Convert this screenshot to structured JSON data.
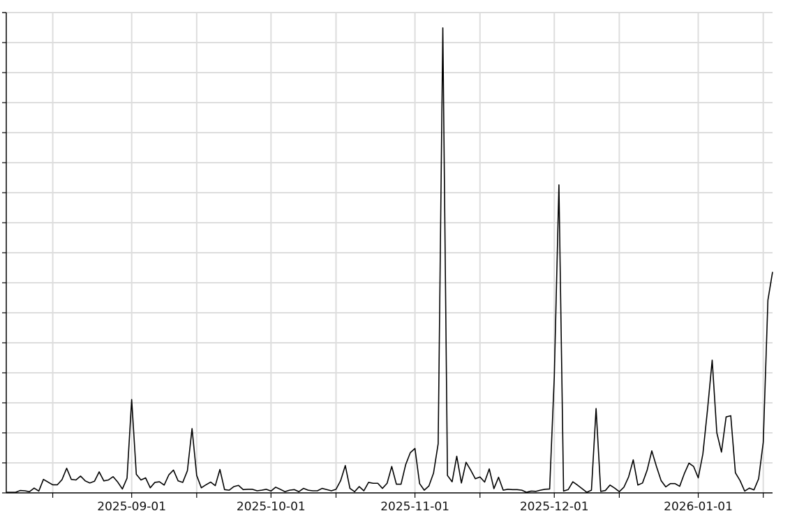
{
  "chart_data": {
    "type": "line",
    "title": "",
    "xlabel": "",
    "ylabel": "",
    "grid": true,
    "legend": "none",
    "line_color": "#000000",
    "grid_color": "#dddddd",
    "xlim": [
      "2025-08-05",
      "2026-01-17"
    ],
    "ylim": [
      0,
      16
    ],
    "y_tick_count": 17,
    "y_tick_labels_shown": false,
    "x_major_ticks": [
      "2025-09-01",
      "2025-10-01",
      "2025-11-01",
      "2025-12-01",
      "2026-01-01"
    ],
    "x_minor_ticks": [
      "2025-08-15",
      "2025-09-15",
      "2025-10-15",
      "2025-11-15",
      "2025-12-15",
      "2026-01-15"
    ],
    "x_tick_labels": [
      "2025-09-01",
      "2025-10-01",
      "2025-11-01",
      "2025-12-01",
      "2026-01-01"
    ],
    "x": [
      "2025-08-05",
      "2025-08-06",
      "2025-08-07",
      "2025-08-08",
      "2025-08-09",
      "2025-08-10",
      "2025-08-11",
      "2025-08-12",
      "2025-08-13",
      "2025-08-14",
      "2025-08-15",
      "2025-08-16",
      "2025-08-17",
      "2025-08-18",
      "2025-08-19",
      "2025-08-20",
      "2025-08-21",
      "2025-08-22",
      "2025-08-23",
      "2025-08-24",
      "2025-08-25",
      "2025-08-26",
      "2025-08-27",
      "2025-08-28",
      "2025-08-29",
      "2025-08-30",
      "2025-08-31",
      "2025-09-01",
      "2025-09-02",
      "2025-09-03",
      "2025-09-04",
      "2025-09-05",
      "2025-09-06",
      "2025-09-07",
      "2025-09-08",
      "2025-09-09",
      "2025-09-10",
      "2025-09-11",
      "2025-09-12",
      "2025-09-13",
      "2025-09-14",
      "2025-09-15",
      "2025-09-16",
      "2025-09-17",
      "2025-09-18",
      "2025-09-19",
      "2025-09-20",
      "2025-09-21",
      "2025-09-22",
      "2025-09-23",
      "2025-09-24",
      "2025-09-25",
      "2025-09-26",
      "2025-09-27",
      "2025-09-28",
      "2025-09-29",
      "2025-09-30",
      "2025-10-01",
      "2025-10-02",
      "2025-10-03",
      "2025-10-04",
      "2025-10-05",
      "2025-10-06",
      "2025-10-07",
      "2025-10-08",
      "2025-10-09",
      "2025-10-10",
      "2025-10-11",
      "2025-10-12",
      "2025-10-13",
      "2025-10-14",
      "2025-10-15",
      "2025-10-16",
      "2025-10-17",
      "2025-10-18",
      "2025-10-19",
      "2025-10-20",
      "2025-10-21",
      "2025-10-22",
      "2025-10-23",
      "2025-10-24",
      "2025-10-25",
      "2025-10-26",
      "2025-10-27",
      "2025-10-28",
      "2025-10-29",
      "2025-10-30",
      "2025-10-31",
      "2025-11-01",
      "2025-11-02",
      "2025-11-03",
      "2025-11-04",
      "2025-11-05",
      "2025-11-06",
      "2025-11-07",
      "2025-11-08",
      "2025-11-09",
      "2025-11-10",
      "2025-11-11",
      "2025-11-12",
      "2025-11-13",
      "2025-11-14",
      "2025-11-15",
      "2025-11-16",
      "2025-11-17",
      "2025-11-18",
      "2025-11-19",
      "2025-11-20",
      "2025-11-21",
      "2025-11-22",
      "2025-11-23",
      "2025-11-24",
      "2025-11-25",
      "2025-11-26",
      "2025-11-27",
      "2025-11-28",
      "2025-11-29",
      "2025-11-30",
      "2025-12-01",
      "2025-12-02",
      "2025-12-03",
      "2025-12-04",
      "2025-12-05",
      "2025-12-06",
      "2025-12-07",
      "2025-12-08",
      "2025-12-09",
      "2025-12-10",
      "2025-12-11",
      "2025-12-12",
      "2025-12-13",
      "2025-12-14",
      "2025-12-15",
      "2025-12-16",
      "2025-12-17",
      "2025-12-18",
      "2025-12-19",
      "2025-12-20",
      "2025-12-21",
      "2025-12-22",
      "2025-12-23",
      "2025-12-24",
      "2025-12-25",
      "2025-12-26",
      "2025-12-27",
      "2025-12-28",
      "2025-12-29",
      "2025-12-30",
      "2025-12-31",
      "2026-01-01",
      "2026-01-02",
      "2026-01-03",
      "2026-01-04",
      "2026-01-05",
      "2026-01-06",
      "2026-01-07",
      "2026-01-08",
      "2026-01-09",
      "2026-01-10",
      "2026-01-11",
      "2026-01-12",
      "2026-01-13",
      "2026-01-14",
      "2026-01-15",
      "2026-01-16",
      "2026-01-17"
    ],
    "values": [
      0.02,
      0.02,
      0.02,
      0.08,
      0.07,
      0.04,
      0.16,
      0.06,
      0.45,
      0.36,
      0.27,
      0.27,
      0.44,
      0.82,
      0.45,
      0.43,
      0.56,
      0.4,
      0.33,
      0.39,
      0.7,
      0.4,
      0.43,
      0.54,
      0.36,
      0.13,
      0.49,
      3.11,
      0.62,
      0.43,
      0.5,
      0.17,
      0.35,
      0.37,
      0.26,
      0.6,
      0.76,
      0.4,
      0.35,
      0.74,
      2.14,
      0.58,
      0.17,
      0.27,
      0.36,
      0.24,
      0.78,
      0.11,
      0.09,
      0.21,
      0.25,
      0.11,
      0.12,
      0.12,
      0.07,
      0.09,
      0.12,
      0.06,
      0.19,
      0.12,
      0.04,
      0.09,
      0.11,
      0.04,
      0.15,
      0.09,
      0.07,
      0.07,
      0.15,
      0.11,
      0.07,
      0.12,
      0.41,
      0.91,
      0.15,
      0.04,
      0.21,
      0.07,
      0.35,
      0.32,
      0.32,
      0.15,
      0.32,
      0.88,
      0.29,
      0.29,
      0.94,
      1.34,
      1.48,
      0.31,
      0.09,
      0.23,
      0.66,
      1.64,
      15.49,
      0.58,
      0.37,
      1.22,
      0.33,
      1.02,
      0.76,
      0.47,
      0.53,
      0.36,
      0.8,
      0.14,
      0.52,
      0.09,
      0.12,
      0.11,
      0.11,
      0.09,
      0.02,
      0.06,
      0.05,
      0.09,
      0.12,
      0.13,
      3.86,
      10.26,
      0.06,
      0.11,
      0.37,
      0.26,
      0.14,
      0.02,
      0.09,
      2.81,
      0.05,
      0.08,
      0.26,
      0.16,
      0.04,
      0.19,
      0.53,
      1.1,
      0.26,
      0.33,
      0.76,
      1.4,
      0.88,
      0.41,
      0.2,
      0.31,
      0.31,
      0.22,
      0.64,
      0.99,
      0.88,
      0.5,
      1.3,
      2.78,
      4.42,
      2.0,
      1.36,
      2.53,
      2.57,
      0.67,
      0.41,
      0.06,
      0.16,
      0.1,
      0.47,
      1.69,
      6.42,
      7.36
    ]
  }
}
